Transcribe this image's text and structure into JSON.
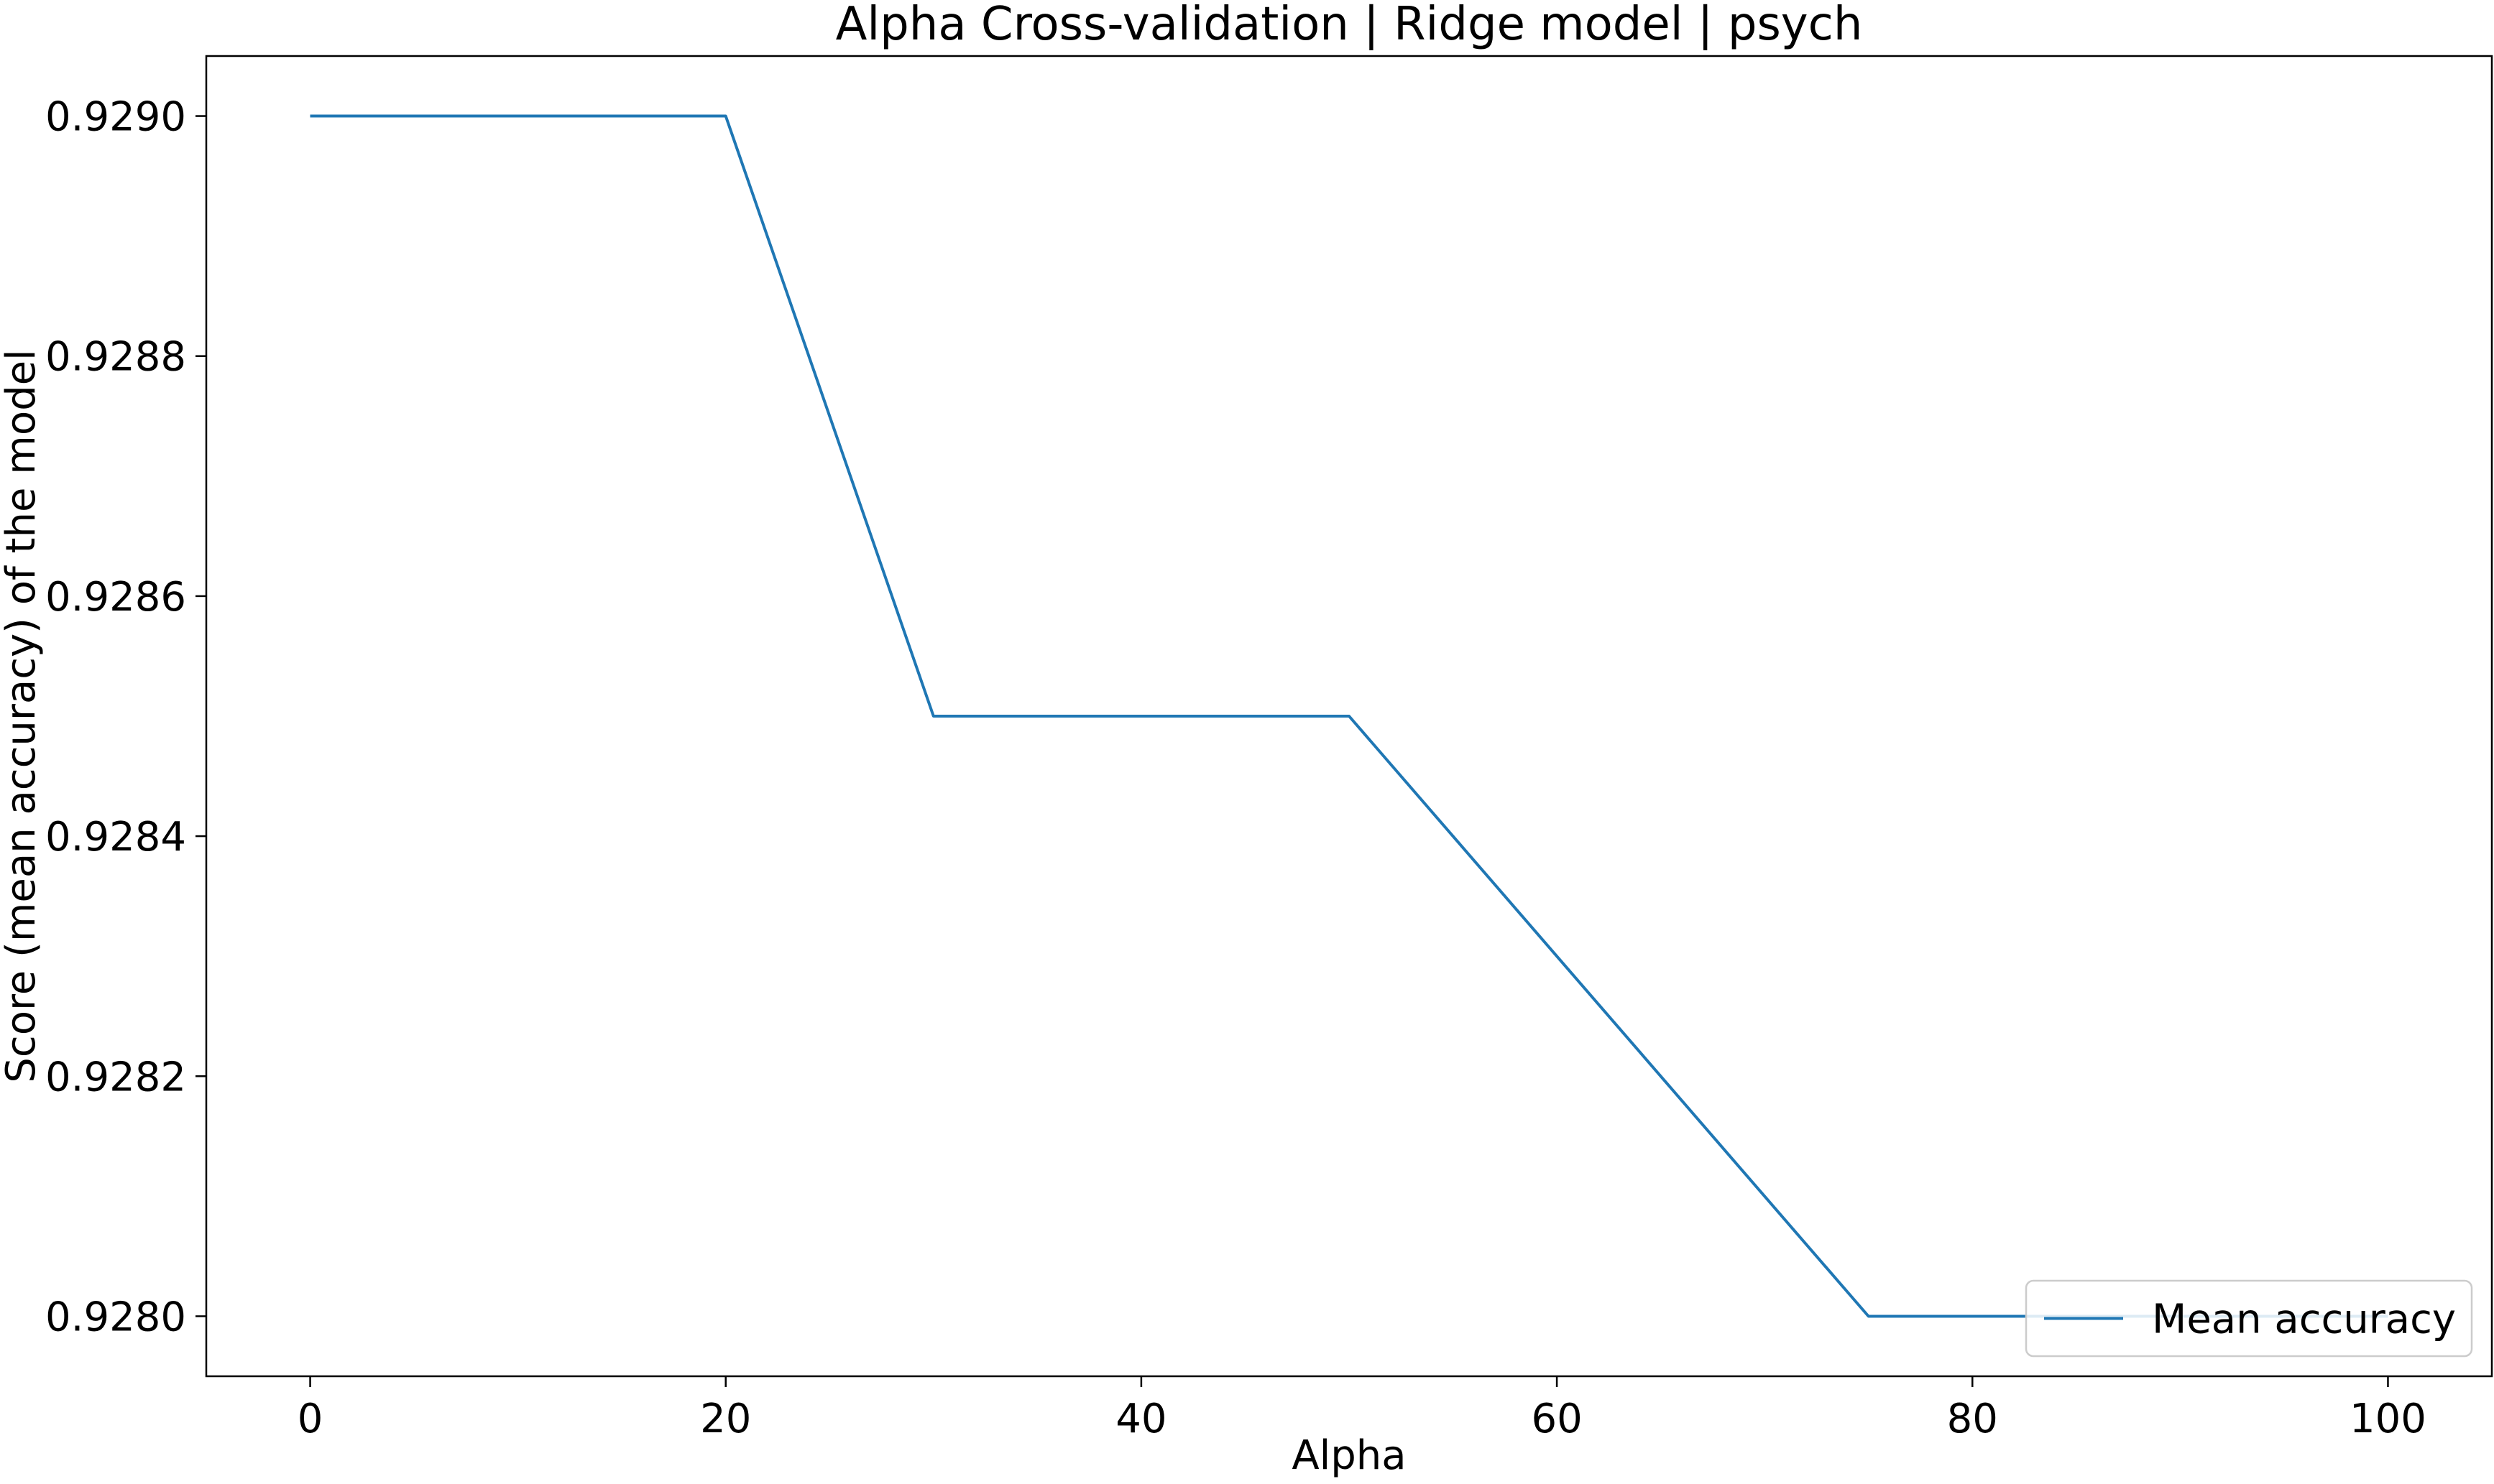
{
  "chart_data": {
    "type": "line",
    "title": "Alpha Cross-validation | Ridge model | psych",
    "xlabel": "Alpha",
    "ylabel": "Score (mean accuracy) of the model",
    "xlim": [
      -5,
      105
    ],
    "ylim": [
      0.92795,
      0.92905
    ],
    "x_ticks": [
      0,
      20,
      40,
      60,
      80,
      100
    ],
    "x_tick_labels": [
      "0",
      "20",
      "40",
      "60",
      "80",
      "100"
    ],
    "y_ticks": [
      0.928,
      0.9282,
      0.9284,
      0.9286,
      0.9288,
      0.929
    ],
    "y_tick_labels": [
      "0.9280",
      "0.9282",
      "0.9284",
      "0.9286",
      "0.9288",
      "0.9290"
    ],
    "grid": false,
    "legend_position": "lower right",
    "series": [
      {
        "name": "Mean accuracy",
        "color": "#1f77b4",
        "x": [
          0,
          20,
          30,
          50,
          75,
          100
        ],
        "y": [
          0.929,
          0.929,
          0.9285,
          0.9285,
          0.928,
          0.928
        ]
      }
    ]
  }
}
